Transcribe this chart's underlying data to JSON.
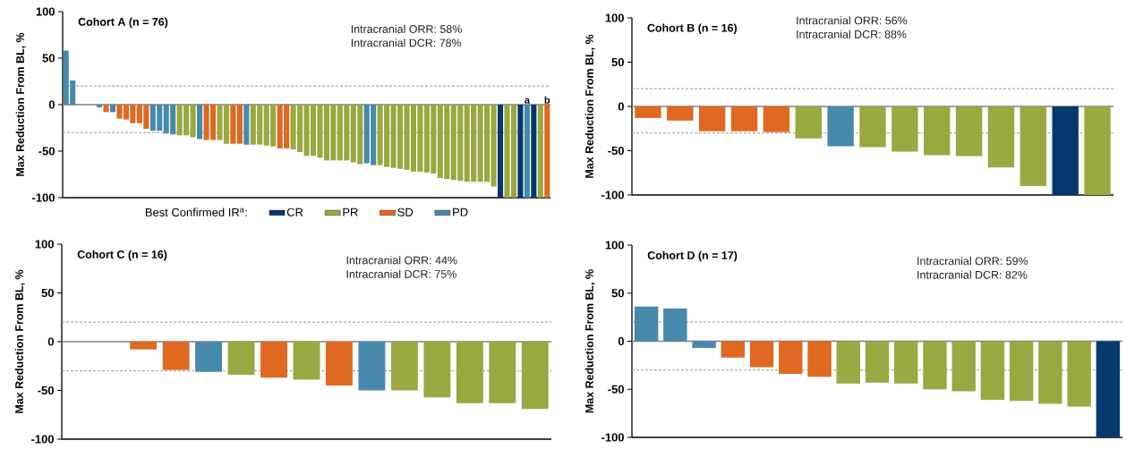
{
  "chart_data": [
    {
      "type": "bar",
      "title": "Cohort A (n = 76)",
      "ylabel": "Max Reduction From BL, %",
      "annotations": [
        "Intracranial ORR: 58%",
        "Intracranial DCR: 78%"
      ],
      "legend_title": "Best Confirmed IR$^{a}$:",
      "legend": "bottom",
      "categories": [
        null,
        null,
        null,
        null,
        null,
        null,
        null,
        null,
        null,
        null,
        null,
        null,
        null,
        null,
        null,
        null,
        null,
        null,
        null,
        null,
        null,
        null,
        null,
        null,
        null,
        null,
        null,
        null,
        null,
        null,
        null,
        null,
        null,
        null,
        null,
        null,
        null,
        null,
        null,
        null,
        null,
        null,
        null,
        null,
        null,
        null,
        null,
        null,
        null,
        null,
        null,
        null,
        null,
        null,
        null,
        null,
        null,
        null,
        null,
        null,
        null,
        null,
        null,
        null,
        null,
        null,
        null,
        null,
        null,
        null,
        null,
        null,
        null
      ],
      "series": [
        {
          "name": "CR",
          "color": "#04386f",
          "values": [
            null,
            null,
            null,
            null,
            null,
            null,
            null,
            null,
            null,
            null,
            null,
            null,
            null,
            null,
            null,
            null,
            null,
            null,
            null,
            null,
            null,
            null,
            null,
            null,
            null,
            null,
            null,
            null,
            null,
            null,
            null,
            null,
            null,
            null,
            null,
            null,
            null,
            null,
            null,
            null,
            null,
            null,
            null,
            null,
            null,
            null,
            null,
            null,
            null,
            null,
            null,
            null,
            null,
            null,
            null,
            null,
            null,
            null,
            null,
            null,
            null,
            null,
            null,
            null,
            null,
            -100,
            null,
            null,
            -100,
            null,
            -100,
            null,
            null
          ]
        },
        {
          "name": "PR",
          "color": "#9aa841",
          "values": [
            null,
            null,
            null,
            null,
            null,
            null,
            null,
            null,
            null,
            null,
            null,
            null,
            null,
            null,
            null,
            null,
            null,
            -33,
            -33,
            -35,
            null,
            null,
            null,
            -38,
            -42,
            null,
            null,
            null,
            -43,
            -43,
            -44,
            -45,
            null,
            null,
            -48,
            -51,
            -55,
            -55,
            -57,
            -60,
            -60,
            -60,
            -60,
            -62,
            -64,
            null,
            null,
            -65,
            -67,
            -68,
            -69,
            -70,
            -72,
            -72,
            -73,
            -74,
            -79,
            -80,
            -81,
            -82,
            -83,
            -83,
            -83,
            -83,
            -88,
            null,
            -100,
            -100,
            null,
            null,
            null,
            -100,
            null
          ]
        },
        {
          "name": "SD",
          "color": "#df6920",
          "values": [
            null,
            null,
            null,
            null,
            null,
            null,
            -8,
            null,
            -15,
            -16,
            -20,
            -20,
            -26,
            null,
            null,
            null,
            null,
            null,
            null,
            null,
            null,
            -38,
            -38,
            null,
            null,
            -42,
            -42,
            null,
            null,
            null,
            null,
            null,
            -47,
            -47,
            null,
            null,
            null,
            null,
            null,
            null,
            null,
            null,
            null,
            null,
            null,
            null,
            null,
            null,
            null,
            null,
            null,
            null,
            null,
            null,
            null,
            null,
            null,
            null,
            null,
            null,
            null,
            null,
            null,
            null,
            null,
            null,
            null,
            null,
            null,
            null,
            null,
            null,
            -100
          ],
          "value_labels": [
            null,
            null,
            null,
            null,
            null,
            null,
            null,
            null,
            null,
            null,
            null,
            null,
            null,
            null,
            null,
            null,
            null,
            null,
            null,
            null,
            null,
            null,
            null,
            null,
            null,
            null,
            null,
            null,
            null,
            null,
            null,
            null,
            null,
            null,
            null,
            null,
            null,
            null,
            null,
            null,
            null,
            null,
            null,
            null,
            null,
            null,
            null,
            null,
            null,
            null,
            null,
            null,
            null,
            null,
            null,
            null,
            null,
            null,
            null,
            null,
            null,
            null,
            null,
            null,
            null,
            null,
            null,
            null,
            null,
            null,
            null,
            null,
            "b"
          ]
        },
        {
          "name": "PD",
          "color": "#4789ab",
          "values": [
            58,
            26,
            null,
            null,
            null,
            -3,
            null,
            -8,
            null,
            null,
            null,
            null,
            null,
            -28,
            -28,
            -31,
            -32,
            null,
            null,
            null,
            -37,
            null,
            null,
            null,
            null,
            null,
            null,
            -43,
            null,
            null,
            null,
            null,
            null,
            null,
            null,
            null,
            null,
            null,
            null,
            null,
            null,
            null,
            null,
            null,
            null,
            -63,
            -65,
            null,
            null,
            null,
            null,
            null,
            null,
            null,
            null,
            null,
            null,
            null,
            null,
            null,
            null,
            null,
            null,
            null,
            null,
            null,
            null,
            null,
            null,
            -100,
            null,
            null,
            null
          ],
          "value_labels": [
            null,
            null,
            null,
            null,
            null,
            null,
            null,
            null,
            null,
            null,
            null,
            null,
            null,
            null,
            null,
            null,
            null,
            null,
            null,
            null,
            null,
            null,
            null,
            null,
            null,
            null,
            null,
            null,
            null,
            null,
            null,
            null,
            null,
            null,
            null,
            null,
            null,
            null,
            null,
            null,
            null,
            null,
            null,
            null,
            null,
            null,
            null,
            null,
            null,
            null,
            null,
            null,
            null,
            null,
            null,
            null,
            null,
            null,
            null,
            null,
            null,
            null,
            null,
            null,
            null,
            null,
            null,
            null,
            null,
            "a",
            null,
            null,
            null
          ]
        }
      ],
      "ylim": [
        -100,
        100
      ],
      "yticks": [
        -100,
        -50,
        0,
        50,
        100
      ],
      "ref_lines": [
        {
          "axis": "y",
          "value": 20,
          "line_style": "dashed",
          "color": "#999999"
        },
        {
          "axis": "y",
          "value": -30,
          "line_style": "dashed",
          "color": "#999999"
        },
        {
          "axis": "y",
          "value": 0,
          "line_style": "solid",
          "color": "#808080"
        }
      ]
    },
    {
      "type": "bar",
      "title": "Cohort B (n = 16)",
      "ylabel": "Max Reduction From BL, %",
      "annotations": [
        "Intracranial ORR: 56%",
        "Intracranial DCR: 88%"
      ],
      "categories": [
        null,
        null,
        null,
        null,
        null,
        null,
        null,
        null,
        null,
        null,
        null,
        null,
        null,
        null,
        null
      ],
      "values": [
        -13,
        -16,
        -28,
        -28,
        -29,
        -36,
        -45,
        -46,
        -51,
        -55,
        -56,
        -69,
        -90,
        -100,
        -100
      ],
      "colors": [
        "#df6920",
        "#df6920",
        "#df6920",
        "#df6920",
        "#df6920",
        "#9aa841",
        "#4789ab",
        "#9aa841",
        "#9aa841",
        "#9aa841",
        "#9aa841",
        "#9aa841",
        "#9aa841",
        "#04386f",
        "#9aa841"
      ],
      "ylim": [
        -100,
        100
      ],
      "yticks": [
        -100,
        -50,
        0,
        50,
        100
      ],
      "ref_lines": [
        {
          "axis": "y",
          "value": 20,
          "line_style": "dashed",
          "color": "#999999"
        },
        {
          "axis": "y",
          "value": -30,
          "line_style": "dashed",
          "color": "#999999"
        },
        {
          "axis": "y",
          "value": 0,
          "line_style": "solid",
          "color": "#808080"
        }
      ]
    },
    {
      "type": "bar",
      "title": "Cohort C (n = 16)",
      "ylabel": "Max Reduction From BL, %",
      "annotations": [
        "Intracranial ORR: 44%",
        "Intracranial DCR: 75%"
      ],
      "categories": [
        null,
        null,
        null,
        null,
        null,
        null,
        null,
        null,
        null,
        null,
        null,
        null,
        null,
        null,
        null
      ],
      "values": [
        null,
        null,
        -8,
        -29,
        -31,
        -34,
        -37,
        -39,
        -45,
        -50,
        -50,
        -57,
        -63,
        -63,
        -69
      ],
      "colors": [
        null,
        null,
        "#df6920",
        "#df6920",
        "#4789ab",
        "#9aa841",
        "#df6920",
        "#9aa841",
        "#df6920",
        "#4789ab",
        "#9aa841",
        "#9aa841",
        "#9aa841",
        "#9aa841",
        "#9aa841"
      ],
      "ylim": [
        -100,
        100
      ],
      "yticks": [
        -100,
        -50,
        0,
        50,
        100
      ],
      "ref_lines": [
        {
          "axis": "y",
          "value": 20,
          "line_style": "dashed",
          "color": "#999999"
        },
        {
          "axis": "y",
          "value": -30,
          "line_style": "dashed",
          "color": "#999999"
        },
        {
          "axis": "y",
          "value": 0,
          "line_style": "solid",
          "color": "#808080"
        }
      ]
    },
    {
      "type": "bar",
      "title": "Cohort D (n = 17)",
      "ylabel": "Max Reduction From BL, %",
      "annotations": [
        "Intracranial ORR: 59%",
        "Intracranial DCR: 82%"
      ],
      "categories": [
        null,
        null,
        null,
        null,
        null,
        null,
        null,
        null,
        null,
        null,
        null,
        null,
        null,
        null,
        null,
        null,
        null
      ],
      "values": [
        36,
        34,
        -7,
        -17,
        -27,
        -34,
        -37,
        -44,
        -43,
        -44,
        -50,
        -52,
        -61,
        -62,
        -65,
        -68,
        -100
      ],
      "colors": [
        "#4789ab",
        "#4789ab",
        "#4789ab",
        "#df6920",
        "#df6920",
        "#df6920",
        "#df6920",
        "#9aa841",
        "#9aa841",
        "#9aa841",
        "#9aa841",
        "#9aa841",
        "#9aa841",
        "#9aa841",
        "#9aa841",
        "#9aa841",
        "#04386f"
      ],
      "ylim": [
        -100,
        100
      ],
      "yticks": [
        -100,
        -50,
        0,
        50,
        100
      ],
      "ref_lines": [
        {
          "axis": "y",
          "value": 20,
          "line_style": "dashed",
          "color": "#999999"
        },
        {
          "axis": "y",
          "value": -30,
          "line_style": "dashed",
          "color": "#999999"
        },
        {
          "axis": "y",
          "value": 0,
          "line_style": "solid",
          "color": "#808080"
        }
      ]
    }
  ]
}
